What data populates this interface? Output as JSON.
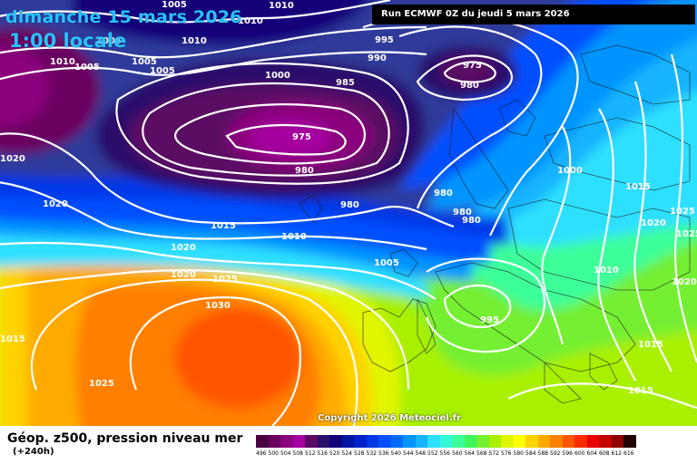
{
  "header": {
    "date_line": "dimanche 15 mars 2026",
    "time_line": "1:00 locale",
    "run_info": "Run ECMWF 0Z du jeudi 5 mars 2026"
  },
  "footer": {
    "field_title": "Géop. z500, pression niveau mer",
    "lead_time": "(+240h)",
    "copyright": "Copyright 2026 Meteociel.fr"
  },
  "legend": {
    "ticks": [
      "496",
      "500",
      "504",
      "508",
      "512",
      "516",
      "520",
      "524",
      "528",
      "532",
      "536",
      "540",
      "544",
      "548",
      "552",
      "556",
      "560",
      "564",
      "568",
      "572",
      "576",
      "580",
      "584",
      "588",
      "592",
      "596",
      "600",
      "604",
      "608",
      "612",
      "616"
    ],
    "colors": [
      "#4b0043",
      "#6a0060",
      "#8a007d",
      "#a5009f",
      "#5a0a63",
      "#2a0f6b",
      "#12007a",
      "#0015a0",
      "#0022c8",
      "#0037e6",
      "#0050ff",
      "#006cff",
      "#0094ff",
      "#19b4ff",
      "#2ee0ff",
      "#33f7d9",
      "#3dff9a",
      "#3df55c",
      "#74ef32",
      "#a8f000",
      "#e1f500",
      "#ffff00",
      "#ffd200",
      "#ffaa00",
      "#ff7f00",
      "#ff5500",
      "#ff2a00",
      "#ea0000",
      "#c40000",
      "#8e0000",
      "#200000"
    ]
  },
  "isobar_labels": [
    {
      "text": "1005"
    },
    {
      "text": "1010"
    },
    {
      "text": "1010"
    },
    {
      "text": "1010"
    },
    {
      "text": "1005"
    },
    {
      "text": "1010"
    },
    {
      "text": "1005"
    },
    {
      "text": "1005"
    },
    {
      "text": "1005"
    },
    {
      "text": "995"
    },
    {
      "text": "990"
    },
    {
      "text": "975"
    },
    {
      "text": "980"
    },
    {
      "text": "1000"
    },
    {
      "text": "985"
    },
    {
      "text": "975"
    },
    {
      "text": "980"
    },
    {
      "text": "1020"
    },
    {
      "text": "1020"
    },
    {
      "text": "980"
    },
    {
      "text": "980"
    },
    {
      "text": "980"
    },
    {
      "text": "980"
    },
    {
      "text": "1000"
    },
    {
      "text": "1015"
    },
    {
      "text": "1015"
    },
    {
      "text": "1010"
    },
    {
      "text": "1020"
    },
    {
      "text": "1025"
    },
    {
      "text": "1025"
    },
    {
      "text": "1020"
    },
    {
      "text": "1005"
    },
    {
      "text": "1020"
    },
    {
      "text": "1025"
    },
    {
      "text": "1010"
    },
    {
      "text": "1020"
    },
    {
      "text": "1030"
    },
    {
      "text": "995"
    },
    {
      "text": "1015"
    },
    {
      "text": "1015"
    },
    {
      "text": "1025"
    },
    {
      "text": "1015"
    }
  ]
}
